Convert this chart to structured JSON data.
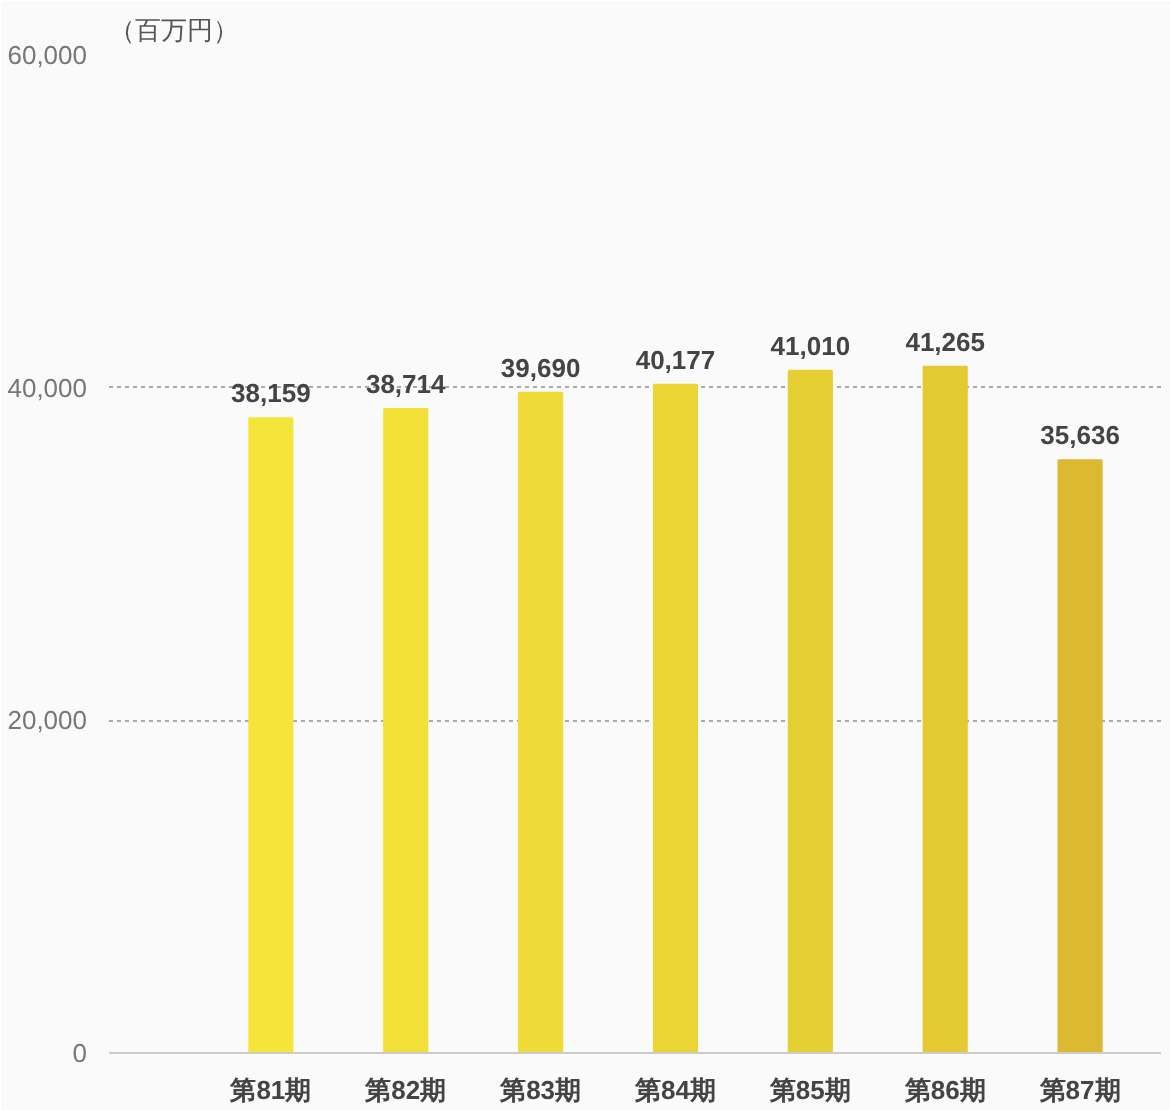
{
  "chart_data": {
    "type": "bar",
    "ylabel": "（百万円）",
    "categories": [
      "第81期",
      "第82期",
      "第83期",
      "第84期",
      "第85期",
      "第86期",
      "第87期"
    ],
    "values": [
      38159,
      38714,
      39690,
      40177,
      41010,
      41265,
      35636
    ],
    "colors": [
      "#f5e53a",
      "#f2df38",
      "#efdb37",
      "#ebd535",
      "#e6cf33",
      "#e3c932",
      "#dcb930"
    ],
    "value_labels": [
      "38,159",
      "38,714",
      "39,690",
      "40,177",
      "41,010",
      "41,265",
      "35,636"
    ],
    "ylim": [
      0,
      60000
    ],
    "yticks": [
      {
        "value": 0,
        "label": "0"
      },
      {
        "value": 20000,
        "label": "20,000"
      },
      {
        "value": 40000,
        "label": "40,000"
      },
      {
        "value": 60000,
        "label": "60,000"
      }
    ],
    "grid": "y"
  }
}
